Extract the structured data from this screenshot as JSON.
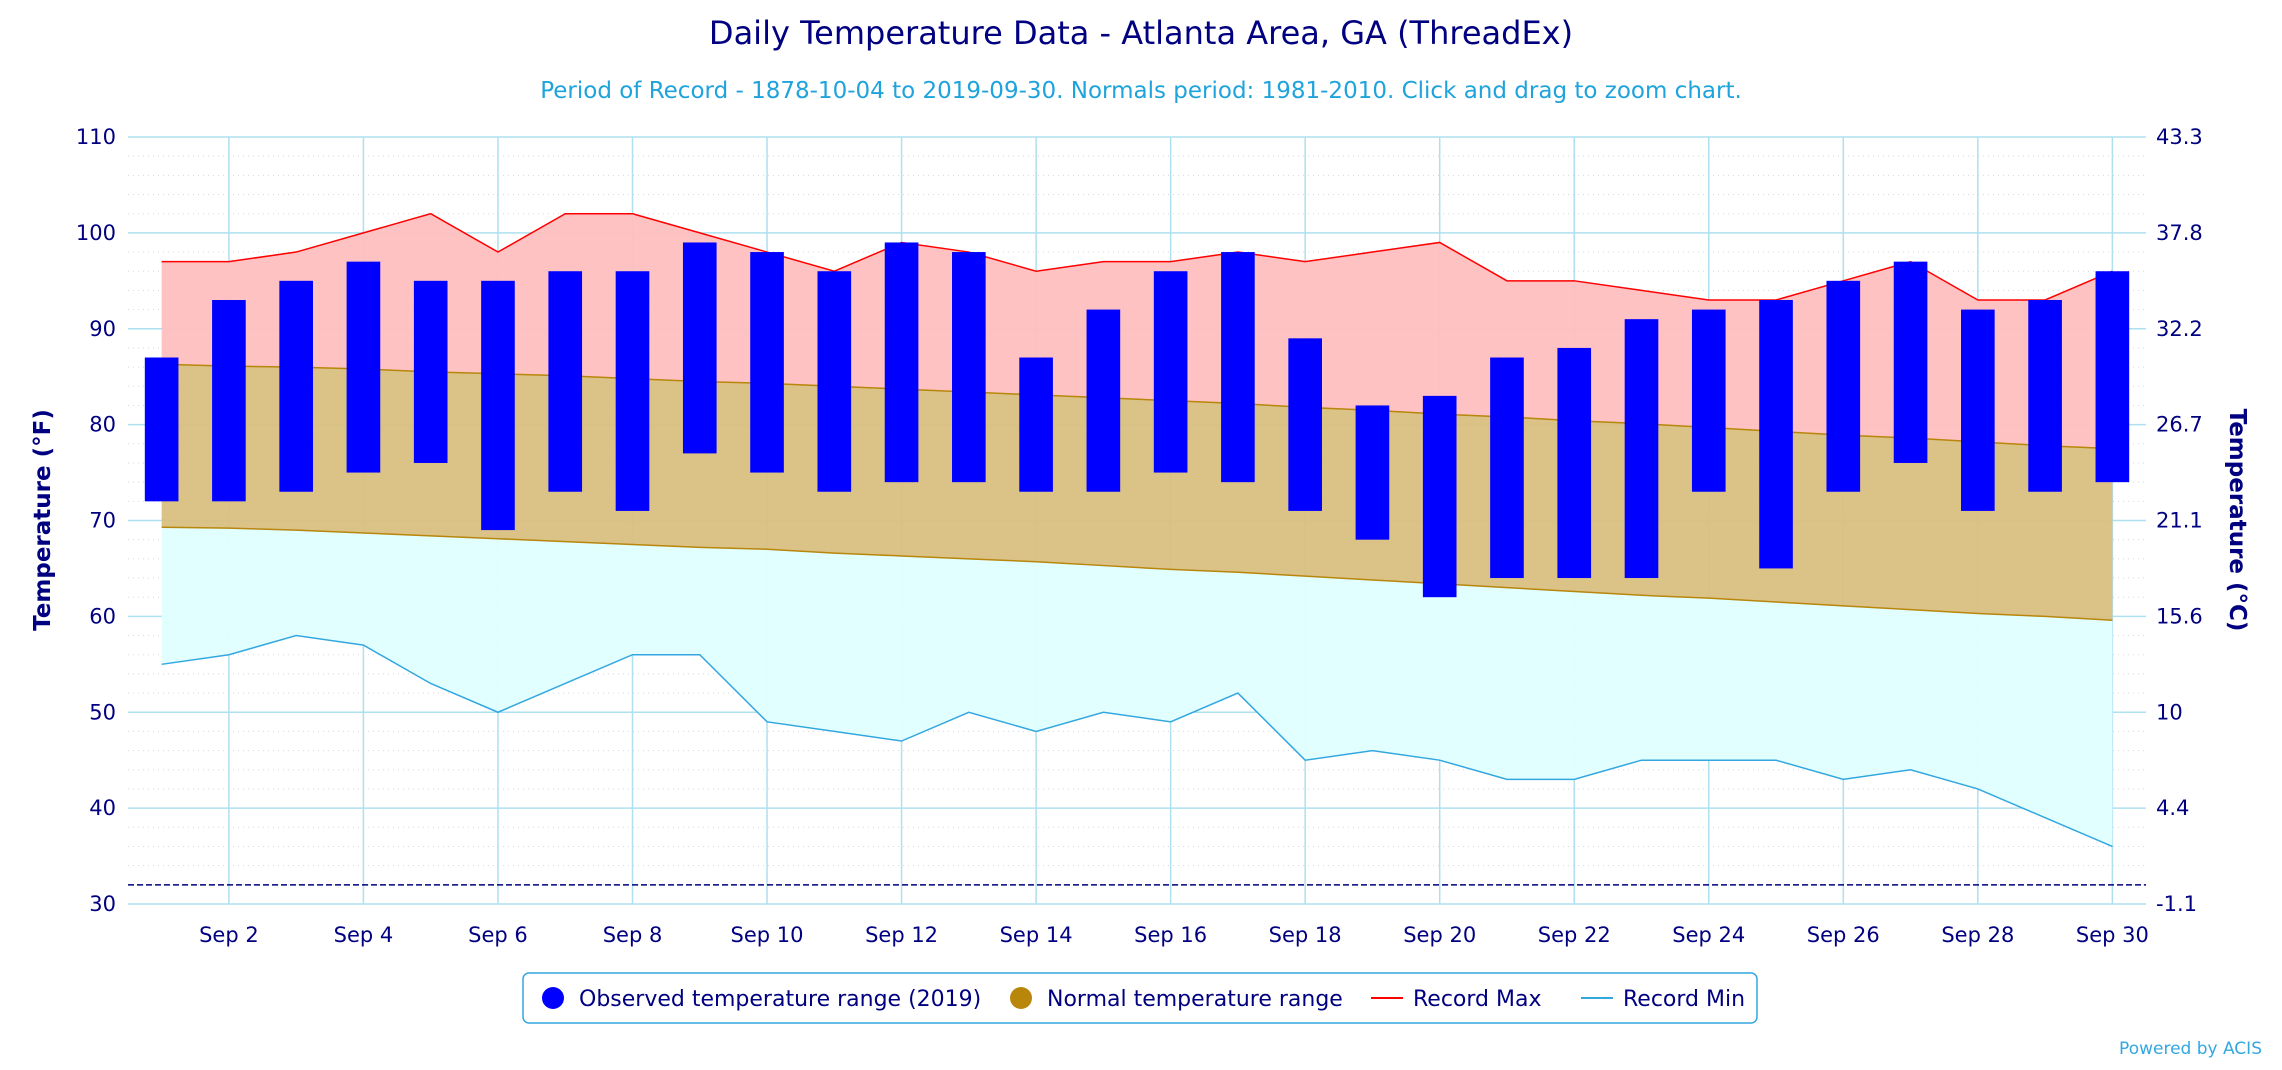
{
  "chart_data": {
    "type": "bar",
    "title": "Daily Temperature Data - Atlanta Area, GA (ThreadEx)",
    "subtitle": "Period of Record - 1878-10-04 to 2019-09-30. Normals period: 1981-2010. Click and drag to zoom chart.",
    "ylabel_left": "Temperature (°F)",
    "ylabel_right": "Temperature (°C)",
    "ylim": [
      30,
      110
    ],
    "y_ticks": [
      "30",
      "40",
      "50",
      "60",
      "70",
      "80",
      "90",
      "100",
      "110"
    ],
    "y_ticks_right": [
      "-1.1",
      "4.4",
      "10",
      "15.6",
      "21.1",
      "26.7",
      "32.2",
      "37.8",
      "43.3"
    ],
    "x_tick_labels": [
      "Sep 2",
      "Sep 4",
      "Sep 6",
      "Sep 8",
      "Sep 10",
      "Sep 12",
      "Sep 14",
      "Sep 16",
      "Sep 18",
      "Sep 20",
      "Sep 22",
      "Sep 24",
      "Sep 26",
      "Sep 28",
      "Sep 30"
    ],
    "x_tick_days": [
      2,
      4,
      6,
      8,
      10,
      12,
      14,
      16,
      18,
      20,
      22,
      24,
      26,
      28,
      30
    ],
    "days": [
      1,
      2,
      3,
      4,
      5,
      6,
      7,
      8,
      9,
      10,
      11,
      12,
      13,
      14,
      15,
      16,
      17,
      18,
      19,
      20,
      21,
      22,
      23,
      24,
      25,
      26,
      27,
      28,
      29,
      30
    ],
    "freezing_line": 32,
    "grid": true,
    "legend_position": "bottom-center",
    "series": [
      {
        "name": "Observed temperature range (2019)",
        "color": "#0000ff",
        "low": [
          72,
          72,
          73,
          75,
          76,
          69,
          73,
          71,
          77,
          75,
          73,
          74,
          74,
          73,
          73,
          75,
          74,
          71,
          68,
          62,
          64,
          64,
          64,
          73,
          65,
          73,
          76,
          71,
          73,
          74
        ],
        "high": [
          87,
          93,
          95,
          97,
          95,
          95,
          96,
          96,
          99,
          98,
          96,
          99,
          98,
          87,
          92,
          96,
          98,
          89,
          82,
          83,
          87,
          88,
          91,
          92,
          93,
          95,
          97,
          92,
          93,
          96
        ]
      },
      {
        "name": "Normal temperature range",
        "color": "#b8860b",
        "low": [
          69.3,
          69.2,
          69.0,
          68.7,
          68.4,
          68.1,
          67.8,
          67.5,
          67.2,
          67.0,
          66.6,
          66.3,
          66.0,
          65.7,
          65.3,
          64.9,
          64.6,
          64.2,
          63.8,
          63.4,
          63.0,
          62.6,
          62.2,
          61.9,
          61.5,
          61.1,
          60.7,
          60.3,
          60.0,
          59.6
        ],
        "high": [
          86.3,
          86.1,
          86.0,
          85.8,
          85.5,
          85.3,
          85.1,
          84.8,
          84.5,
          84.3,
          84.0,
          83.7,
          83.4,
          83.1,
          82.8,
          82.5,
          82.2,
          81.8,
          81.5,
          81.1,
          80.8,
          80.4,
          80.1,
          79.7,
          79.3,
          78.9,
          78.6,
          78.2,
          77.8,
          77.5
        ]
      },
      {
        "name": "Record Max",
        "color": "#ff0000",
        "values": [
          97,
          97,
          98,
          100,
          102,
          98,
          102,
          102,
          100,
          98,
          96,
          99,
          98,
          96,
          97,
          97,
          98,
          97,
          98,
          99,
          95,
          95,
          94,
          93,
          93,
          95,
          97,
          93,
          93,
          96
        ]
      },
      {
        "name": "Record Min",
        "color": "#33a7e0",
        "values": [
          55,
          56,
          58,
          57,
          53,
          50,
          53,
          56,
          56,
          49,
          48,
          47,
          50,
          48,
          50,
          49,
          52,
          45,
          46,
          45,
          43,
          43,
          45,
          45,
          45,
          43,
          44,
          42,
          39,
          36
        ]
      }
    ]
  },
  "legend": {
    "observed": "Observed temperature range (2019)",
    "normal": "Normal temperature range",
    "record_max": "Record Max",
    "record_min": "Record Min"
  },
  "credit": "Powered by ACIS",
  "colors": {
    "record_band": "#ffbfbf",
    "normal_band": "#d9bf80",
    "low_band": "#e0ffff",
    "grid": "#aee0f0",
    "axis_text": "#000080",
    "legend_border": "#33a7e0"
  }
}
